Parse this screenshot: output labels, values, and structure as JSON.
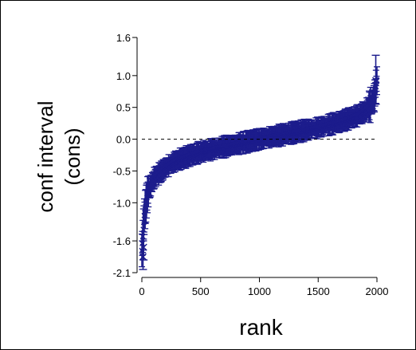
{
  "chart_data": {
    "type": "scatter",
    "xlabel": "rank",
    "ylabel_line1": "conf interval",
    "ylabel_line2": "(cons)",
    "xlim": [
      0,
      2000
    ],
    "ylim": [
      -2.1,
      1.6
    ],
    "x_ticks": [
      0,
      500,
      1000,
      1500,
      2000
    ],
    "x_tick_labels": [
      "0",
      "500",
      "1000",
      "1500",
      "2000"
    ],
    "y_ticks": [
      1.6,
      1.0,
      0.5,
      0.0,
      -0.5,
      -1.0,
      -1.6,
      -2.1
    ],
    "y_tick_labels": [
      "1.6",
      "1.0",
      "0.5",
      "0.0",
      "-0.5",
      "-1.0",
      "-1.6",
      "-2.1"
    ],
    "reference_line": {
      "y": 0.0,
      "style": "dashed"
    },
    "marker": "x",
    "grid": false,
    "color": "#1c1c8c",
    "profile_x": [
      0,
      20,
      50,
      100,
      200,
      300,
      500,
      800,
      1000,
      1200,
      1500,
      1700,
      1850,
      1900,
      1950,
      1980,
      2000
    ],
    "profile_y": [
      -1.75,
      -1.2,
      -0.85,
      -0.62,
      -0.45,
      -0.33,
      -0.2,
      -0.08,
      0.0,
      0.07,
      0.18,
      0.28,
      0.38,
      0.45,
      0.55,
      0.68,
      0.92
    ],
    "n_points": 2000,
    "ci_halfwidth_typical": 0.12,
    "extreme_points": [
      {
        "x": 10,
        "y": -1.85,
        "lo": -2.05,
        "hi": -1.6
      },
      {
        "x": 15,
        "y": -1.7,
        "lo": -1.9,
        "hi": -1.5
      },
      {
        "x": 1990,
        "y": 0.92,
        "lo": 0.55,
        "hi": 1.32
      }
    ]
  },
  "colors": {
    "series": "#1c1c8c",
    "frame": "#000000",
    "background": "#ffffff"
  }
}
